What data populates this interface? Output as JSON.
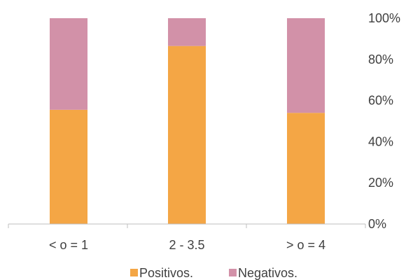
{
  "chart_data": {
    "type": "bar",
    "stacked": true,
    "percent": true,
    "categories": [
      "< o = 1",
      "2 - 3.5",
      "> o = 4"
    ],
    "series": [
      {
        "name": "Positivos.",
        "color": "#F4A645",
        "values": [
          55.5,
          86.5,
          54
        ]
      },
      {
        "name": "Negativos.",
        "color": "#D291A8",
        "values": [
          44.5,
          13.5,
          46
        ]
      }
    ],
    "ylim": [
      0,
      100
    ],
    "yticks": [
      "0%",
      "20%",
      "40%",
      "60%",
      "80%",
      "100%"
    ],
    "y_axis_side": "right",
    "grid": false,
    "legend": "bottom",
    "title": "",
    "xlabel": "",
    "ylabel": ""
  }
}
